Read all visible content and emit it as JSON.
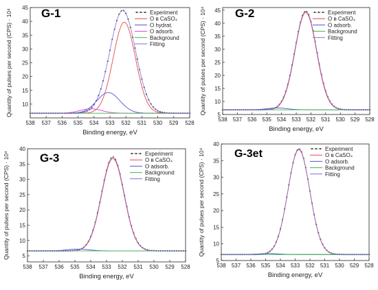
{
  "chart_data": [
    {
      "type": "line",
      "title": "G-1",
      "xlabel": "Binding energy, eV",
      "ylabel": "Quantity of pulses per second  (CPS) · 10⁴",
      "x_reversed": true,
      "xlim": [
        538,
        528
      ],
      "ylim": [
        5,
        45
      ],
      "xticks": [
        538,
        537,
        536,
        535,
        534,
        533,
        532,
        531,
        530,
        529,
        528
      ],
      "yticks": [
        10,
        15,
        20,
        25,
        30,
        35,
        40,
        45
      ],
      "legend": {
        "placement": "top-right",
        "entries": [
          "Experiment",
          "O в CaSO₄",
          "O hydrat.",
          "O adsorb.",
          "Background",
          "Fitting"
        ]
      },
      "baseline": 6.7,
      "series": [
        {
          "name": "Experiment",
          "color": "#333333",
          "style": "dots",
          "center": 532.2,
          "amplitude": 37.3,
          "fwhm": 1.9
        },
        {
          "name": "O в CaSO₄",
          "color": "#e8474b",
          "center": 532.1,
          "amplitude": 33.0,
          "fwhm": 1.65
        },
        {
          "name": "O hydrat.",
          "color": "#5050d8",
          "center": 533.1,
          "amplitude": 7.5,
          "fwhm": 1.7
        },
        {
          "name": "O adsorb.",
          "color": "#d040d0",
          "center": 534.2,
          "amplitude": 1.6,
          "fwhm": 1.6
        },
        {
          "name": "Background",
          "color": "#3cb44b",
          "style": "flat",
          "value": 6.7
        },
        {
          "name": "Fitting",
          "color": "#7e6fd8",
          "center": 532.2,
          "amplitude": 37.3,
          "fwhm": 1.9
        }
      ]
    },
    {
      "type": "line",
      "title": "G-2",
      "xlabel": "Binding energy, eV",
      "ylabel": "Quantity of pulses per second  (CPS) · 10⁴",
      "x_reversed": true,
      "xlim": [
        538,
        528
      ],
      "ylim": [
        5,
        46
      ],
      "xticks": [
        538,
        537,
        536,
        535,
        534,
        533,
        532,
        531,
        530,
        529,
        528
      ],
      "yticks": [
        5,
        10,
        15,
        20,
        25,
        30,
        35,
        40,
        45
      ],
      "legend": {
        "placement": "top-right",
        "entries": [
          "Experiment",
          "O в CaSO₄",
          "O adsorb.",
          "Background",
          "Fitting"
        ]
      },
      "baseline": 6.8,
      "series": [
        {
          "name": "Experiment",
          "color": "#333333",
          "style": "dots",
          "center": 532.35,
          "amplitude": 37.8,
          "fwhm": 1.75
        },
        {
          "name": "O в CaSO₄",
          "color": "#e8474b",
          "center": 532.35,
          "amplitude": 37.3,
          "fwhm": 1.72
        },
        {
          "name": "O adsorb.",
          "color": "#5050d8",
          "center": 534.3,
          "amplitude": 0.7,
          "fwhm": 1.6
        },
        {
          "name": "Background",
          "color": "#3cb44b",
          "style": "flat",
          "value": 6.8
        },
        {
          "name": "Fitting",
          "color": "#7e6fd8",
          "center": 532.35,
          "amplitude": 37.8,
          "fwhm": 1.75
        }
      ]
    },
    {
      "type": "line",
      "title": "G-3",
      "xlabel": "Binding energy, eV",
      "ylabel": "Quantity of pulses per second  (CPS) · 10⁴",
      "x_reversed": true,
      "xlim": [
        538,
        528
      ],
      "ylim": [
        3,
        40
      ],
      "xticks": [
        538,
        537,
        536,
        535,
        534,
        533,
        532,
        531,
        530,
        529,
        528
      ],
      "yticks": [
        5,
        10,
        15,
        20,
        25,
        30,
        35,
        40
      ],
      "legend": {
        "placement": "top-right",
        "entries": [
          "Experiment",
          "O в CaSO₄",
          "O adsorb.",
          "Background",
          "Fitting"
        ]
      },
      "baseline": 6.6,
      "series": [
        {
          "name": "Experiment",
          "color": "#333333",
          "style": "dots",
          "center": 532.6,
          "amplitude": 30.7,
          "fwhm": 1.7
        },
        {
          "name": "O в CaSO₄",
          "color": "#e8474b",
          "center": 532.6,
          "amplitude": 30.2,
          "fwhm": 1.68
        },
        {
          "name": "O adsorb.",
          "color": "#5050d8",
          "center": 534.8,
          "amplitude": 0.6,
          "fwhm": 1.6
        },
        {
          "name": "Background",
          "color": "#3cb44b",
          "style": "flat",
          "value": 6.6
        },
        {
          "name": "Fitting",
          "color": "#7e6fd8",
          "center": 532.6,
          "amplitude": 30.7,
          "fwhm": 1.7
        }
      ]
    },
    {
      "type": "line",
      "title": "G-3et",
      "xlabel": "Binding energy, eV",
      "ylabel": "Quantity of pulses per second  (CPS) · 10⁴",
      "x_reversed": true,
      "xlim": [
        538,
        528
      ],
      "ylim": [
        5,
        40
      ],
      "xticks": [
        538,
        537,
        536,
        535,
        534,
        533,
        532,
        531,
        530,
        529,
        528
      ],
      "yticks": [
        5,
        10,
        15,
        20,
        25,
        30,
        35,
        40
      ],
      "legend": {
        "placement": "top-right",
        "entries": [
          "Experiment",
          "O в CaSO₄",
          "O adsorb.",
          "Background",
          "Fitting"
        ]
      },
      "baseline": 6.8,
      "series": [
        {
          "name": "Experiment",
          "color": "#333333",
          "style": "dots",
          "center": 532.75,
          "amplitude": 31.7,
          "fwhm": 1.75
        },
        {
          "name": "O в CaSO₄",
          "color": "#e8474b",
          "center": 532.75,
          "amplitude": 31.5,
          "fwhm": 1.74
        },
        {
          "name": "O adsorb.",
          "color": "#5050d8",
          "center": 534.8,
          "amplitude": 0.3,
          "fwhm": 1.6
        },
        {
          "name": "Background",
          "color": "#3cb44b",
          "style": "flat",
          "value": 6.8
        },
        {
          "name": "Fitting",
          "color": "#7e6fd8",
          "center": 532.75,
          "amplitude": 31.7,
          "fwhm": 1.75
        }
      ]
    }
  ]
}
